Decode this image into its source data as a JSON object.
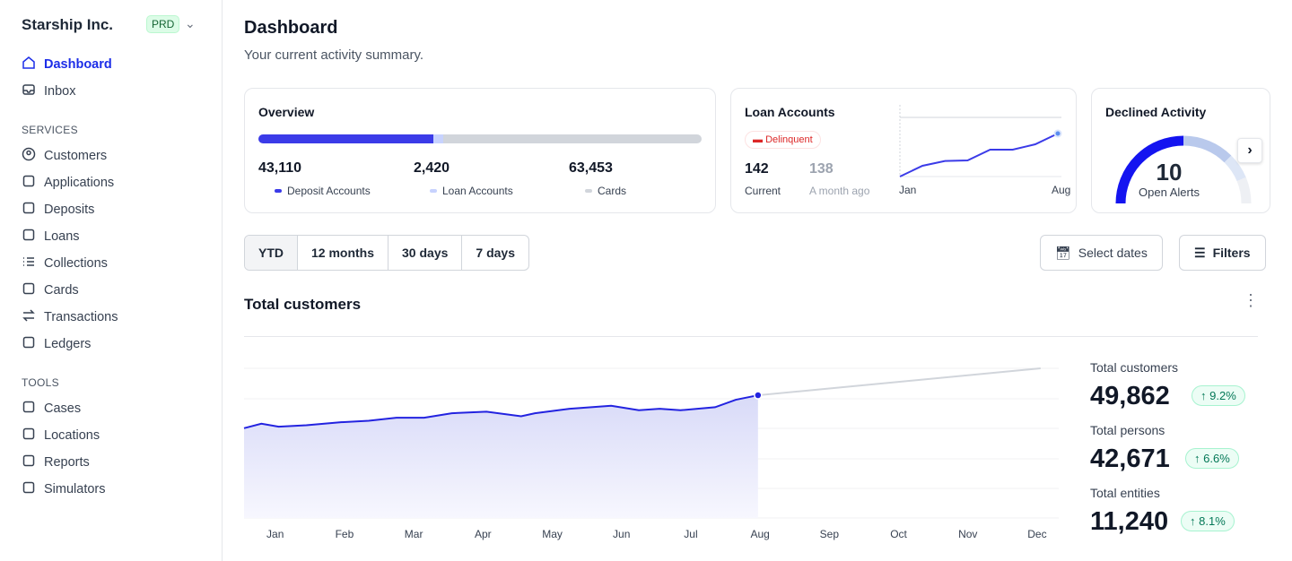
{
  "sidebar": {
    "org": "Starship Inc.",
    "env": "PRD",
    "items": [
      {
        "label": "Dashboard",
        "icon": "home-icon",
        "active": true
      },
      {
        "label": "Inbox",
        "icon": "inbox-icon"
      }
    ],
    "services_label": "SERVICES",
    "services": [
      {
        "label": "Customers",
        "icon": "user-circle-icon"
      },
      {
        "label": "Applications",
        "icon": "document-icon"
      },
      {
        "label": "Deposits",
        "icon": "wallet-icon"
      },
      {
        "label": "Loans",
        "icon": "folder-icon"
      },
      {
        "label": "Collections",
        "icon": "list-icon"
      },
      {
        "label": "Cards",
        "icon": "credit-card-icon"
      },
      {
        "label": "Transactions",
        "icon": "arrows-icon"
      },
      {
        "label": "Ledgers",
        "icon": "book-icon"
      }
    ],
    "tools_label": "TOOLS",
    "tools": [
      {
        "label": "Cases",
        "icon": "folder-icon"
      },
      {
        "label": "Locations",
        "icon": "map-icon"
      },
      {
        "label": "Reports",
        "icon": "chat-icon"
      },
      {
        "label": "Simulators",
        "icon": "calculator-icon"
      }
    ]
  },
  "header": {
    "title": "Dashboard",
    "subtitle": "Your current activity summary."
  },
  "overview": {
    "title": "Overview",
    "items": [
      {
        "value": "43,110",
        "label": "Deposit Accounts",
        "amount": 43110,
        "color": "#3b3be8"
      },
      {
        "value": "2,420",
        "label": "Loan Accounts",
        "amount": 2420,
        "color": "#c7d2fe"
      },
      {
        "value": "63,453",
        "label": "Cards",
        "amount": 63453,
        "color": "#d1d5db"
      }
    ]
  },
  "loan": {
    "title": "Loan Accounts",
    "badge": "Delinquent",
    "current": "142",
    "current_label": "Current",
    "previous": "138",
    "previous_label": "A month ago",
    "x_start": "Jan",
    "x_end": "Aug",
    "trend": [
      0,
      18,
      26,
      27,
      45,
      45,
      54,
      72
    ]
  },
  "declined": {
    "title": "Declined Activity",
    "value": "10",
    "label": "Open Alerts"
  },
  "filters": {
    "ranges": [
      "YTD",
      "12 months",
      "30 days",
      "7 days"
    ],
    "active": "YTD",
    "select_dates": "Select dates",
    "filters": "Filters"
  },
  "chart_data": {
    "type": "area",
    "title": "Total customers",
    "months": [
      "Jan",
      "Feb",
      "Mar",
      "Apr",
      "May",
      "Jun",
      "Jul",
      "Aug",
      "Sep",
      "Oct",
      "Nov",
      "Dec"
    ],
    "actual": [
      [
        0,
        60
      ],
      [
        0.25,
        63
      ],
      [
        0.5,
        61
      ],
      [
        0.9,
        62
      ],
      [
        1.4,
        64
      ],
      [
        1.8,
        65
      ],
      [
        2.2,
        67
      ],
      [
        2.6,
        67
      ],
      [
        3,
        70
      ],
      [
        3.5,
        71
      ],
      [
        4,
        68
      ],
      [
        4.2,
        70
      ],
      [
        4.7,
        73
      ],
      [
        5.3,
        75
      ],
      [
        5.7,
        72
      ],
      [
        6,
        73
      ],
      [
        6.3,
        72
      ],
      [
        6.8,
        74
      ],
      [
        7.1,
        79
      ],
      [
        7.42,
        82
      ]
    ],
    "projection": [
      [
        7.42,
        82
      ],
      [
        11.5,
        100
      ]
    ],
    "grid": true
  },
  "stats": [
    {
      "label": "Total customers",
      "value": "49,862",
      "change": "9.2%"
    },
    {
      "label": "Total persons",
      "value": "42,671",
      "change": "6.6%"
    },
    {
      "label": "Total entities",
      "value": "11,240",
      "change": "8.1%"
    }
  ]
}
